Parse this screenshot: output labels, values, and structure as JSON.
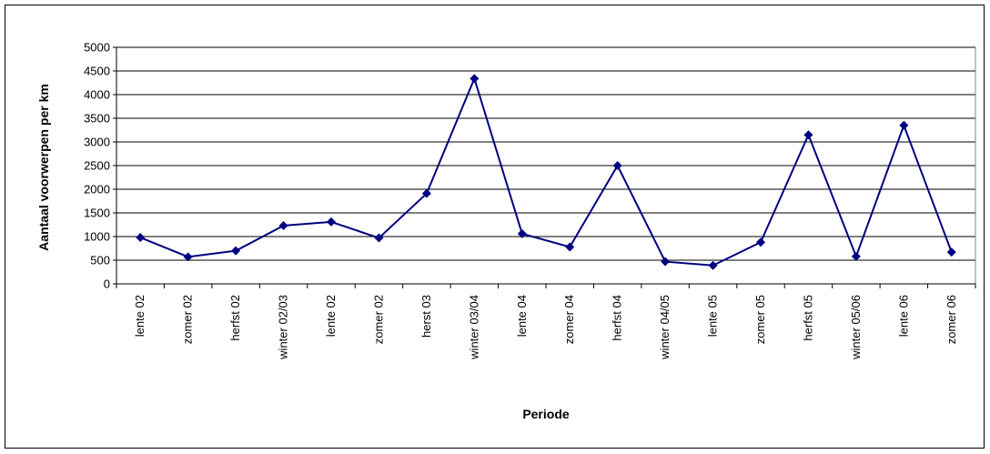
{
  "chart_data": {
    "type": "line",
    "xlabel": "Periode",
    "ylabel": "Aantaal voorwerpen per km",
    "ylim": [
      0,
      5000
    ],
    "yticks": [
      0,
      500,
      1000,
      1500,
      2000,
      2500,
      3000,
      3500,
      4000,
      4500,
      5000
    ],
    "grid": true,
    "legend": "none",
    "categories": [
      "lente 02",
      "zomer 02",
      "herfst 02",
      "winter 02/03",
      "lente 02",
      "zomer 02",
      "herst 03",
      "winter 03/04",
      "lente 04",
      "zomer 04",
      "herfst 04",
      "winter 04/05",
      "lente 05",
      "zomer 05",
      "herfst 05",
      "winter 05/06",
      "lente 06",
      "zomer 06"
    ],
    "series": [
      {
        "color": "#000080",
        "values": [
          980,
          570,
          700,
          1230,
          1310,
          970,
          1910,
          4340,
          1060,
          780,
          2500,
          470,
          390,
          880,
          3150,
          580,
          3350,
          670
        ]
      }
    ]
  }
}
